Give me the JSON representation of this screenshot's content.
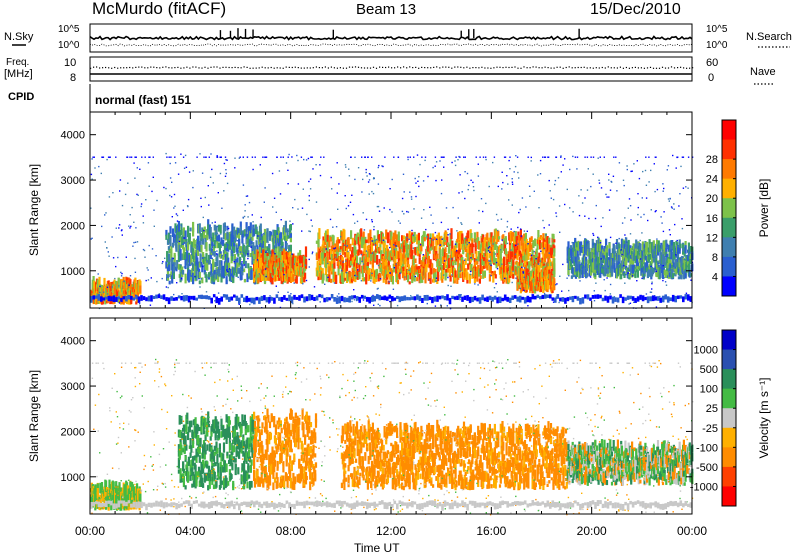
{
  "header": {
    "station": "McMurdo (fitACF)",
    "beam": "Beam 13",
    "date": "15/Dec/2010"
  },
  "summary_panels": {
    "nsky_label": "N.Sky",
    "nsearch_label": "N.Search",
    "count_ticks": [
      "10^5",
      "10^0"
    ],
    "freq_label_top": "Freq.",
    "freq_label_unit": "[MHz]",
    "freq_ticks": [
      "10",
      "8"
    ],
    "nave_label": "Nave",
    "nave_ticks": [
      "60",
      "0"
    ],
    "cpid_label": "CPID",
    "cpid_value": "normal (fast) 151"
  },
  "colors": {
    "power": [
      "#0000ff",
      "#2a5fd0",
      "#3f7fb0",
      "#3a9e6a",
      "#7dc24a",
      "#ffb000",
      "#ff7a00",
      "#ff3000",
      "#ff0000"
    ],
    "velocity": [
      "#ff0000",
      "#ff4000",
      "#ff8c00",
      "#ffb000",
      "#c8c8c8",
      "#44bb44",
      "#2a8f5a",
      "#2a50b0",
      "#0000c8"
    ]
  },
  "chart_data": [
    {
      "type": "heatmap",
      "name": "Power",
      "ylabel": "Slant Range [km]",
      "yticks": [
        "1000",
        "2000",
        "3000",
        "4000"
      ],
      "ylim": [
        180,
        4500
      ],
      "xticks": [
        "00:00",
        "04:00",
        "08:00",
        "12:00",
        "16:00",
        "20:00",
        "00:00"
      ],
      "colorbar_label": "Power [dB]",
      "colorbar_ticks": [
        "4",
        "8",
        "12",
        "16",
        "20",
        "24",
        "28"
      ],
      "echo_bands": [
        {
          "t": [
            0.0,
            2.0
          ],
          "range_km": [
            250,
            650
          ],
          "level": "high"
        },
        {
          "t": [
            3.0,
            8.0
          ],
          "range_km": [
            700,
            1900
          ],
          "level": "medium"
        },
        {
          "t": [
            6.5,
            8.6
          ],
          "range_km": [
            700,
            1300
          ],
          "level": "high"
        },
        {
          "t": [
            9.0,
            18.5
          ],
          "range_km": [
            700,
            1700
          ],
          "level": "high"
        },
        {
          "t": [
            17.0,
            18.5
          ],
          "range_km": [
            500,
            900
          ],
          "level": "high"
        },
        {
          "t": [
            19.0,
            24.0
          ],
          "range_km": [
            800,
            1500
          ],
          "level": "medium"
        }
      ]
    },
    {
      "type": "heatmap",
      "name": "Velocity",
      "ylabel": "Slant Range [km]",
      "yticks": [
        "1000",
        "2000",
        "3000",
        "4000"
      ],
      "ylim": [
        180,
        4500
      ],
      "xticks": [
        "00:00",
        "04:00",
        "08:00",
        "12:00",
        "16:00",
        "20:00",
        "00:00"
      ],
      "xlabel": "Time UT",
      "colorbar_label": "Velocity [m s⁻¹]",
      "colorbar_ticks": [
        "1000",
        "500",
        "100",
        "25",
        "-25",
        "-100",
        "-500",
        "-1000"
      ],
      "echo_bands": [
        {
          "t": [
            0.0,
            2.0
          ],
          "range_km": [
            250,
            700
          ],
          "level": "low"
        },
        {
          "t": [
            3.5,
            6.5
          ],
          "range_km": [
            700,
            2200
          ],
          "level": "positive"
        },
        {
          "t": [
            6.5,
            9.0
          ],
          "range_km": [
            700,
            2300
          ],
          "level": "negative"
        },
        {
          "t": [
            10.0,
            19.0
          ],
          "range_km": [
            700,
            2000
          ],
          "level": "negative"
        },
        {
          "t": [
            19.0,
            24.0
          ],
          "range_km": [
            800,
            1600
          ],
          "level": "mixed"
        }
      ]
    }
  ]
}
